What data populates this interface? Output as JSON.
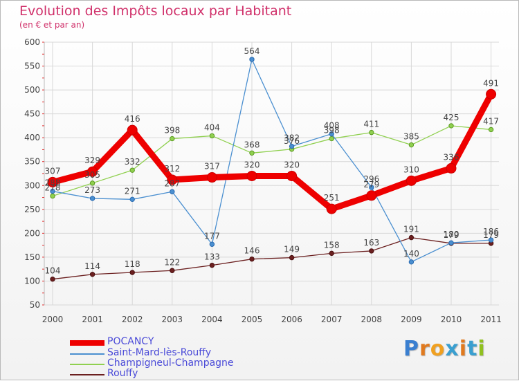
{
  "header": {
    "title": "Evolution des Impôts locaux par Habitant",
    "subtitle": "(en € et par an)"
  },
  "colors": {
    "title": "#d0306a",
    "pocancy": "#ee0000",
    "saint_mard": "#4a8fd0",
    "champigneul": "#90d050",
    "rouffy": "#6b1f1f",
    "grid": "#d8d8d8",
    "legend_text": "#4a4ad8"
  },
  "logo": {
    "text": "Proxiti",
    "letters": [
      "P",
      "r",
      "o",
      "x",
      "i",
      "t",
      "i"
    ],
    "letter_colors": [
      "#3a7fd0",
      "#e07a1f",
      "#f0a020",
      "#3a9fd0",
      "#e07a1f",
      "#3a9fd0",
      "#90c020"
    ]
  },
  "chart_data": {
    "type": "line",
    "title": "Evolution des Impôts locaux par Habitant",
    "subtitle": "(en € et par an)",
    "xlabel": "",
    "ylabel": "",
    "ylim": [
      50,
      600
    ],
    "yticks": [
      50,
      100,
      150,
      200,
      250,
      300,
      350,
      400,
      450,
      500,
      550,
      600
    ],
    "grid": true,
    "legend_position": "bottom-left",
    "categories": [
      "2000",
      "2001",
      "2002",
      "2003",
      "2004",
      "2005",
      "2006",
      "2007",
      "2008",
      "2009",
      "2010",
      "2011"
    ],
    "series": [
      {
        "key": "rouffy",
        "name": "Rouffy",
        "values": [
          104,
          114,
          118,
          122,
          133,
          146,
          149,
          158,
          163,
          191,
          179,
          179
        ],
        "labels": [
          "104",
          "114",
          "118",
          "122",
          "133",
          "146",
          "149",
          "158",
          "163",
          "191",
          "179",
          "179"
        ]
      },
      {
        "key": "champigneul",
        "name": "Champigneul-Champagne",
        "values": [
          278,
          305,
          332,
          398,
          404,
          368,
          376,
          398,
          411,
          385,
          425,
          417
        ],
        "labels": [
          "278",
          "305",
          "332",
          "398",
          "404",
          "368",
          "376",
          "398",
          "411",
          "385",
          "425",
          "417"
        ]
      },
      {
        "key": "saint_mard",
        "name": "Saint-Mard-lès-Rouffy",
        "values": [
          288,
          273,
          271,
          287,
          177,
          564,
          382,
          408,
          296,
          140,
          180,
          186
        ],
        "labels": [
          "288",
          "273",
          "271",
          "287",
          "177",
          "564",
          "382",
          "408",
          "296",
          "140",
          "180",
          "186"
        ]
      },
      {
        "key": "pocancy",
        "name": "POCANCY",
        "values": [
          307,
          329,
          416,
          312,
          317,
          320,
          320,
          251,
          279,
          310,
          336,
          491
        ],
        "labels": [
          "307",
          "329",
          "416",
          "312",
          "317",
          "320",
          "320",
          "251",
          "279",
          "310",
          "336",
          "491"
        ]
      }
    ]
  },
  "legend": {
    "items": [
      {
        "key": "pocancy",
        "label": "POCANCY"
      },
      {
        "key": "saint_mard",
        "label": "Saint-Mard-lès-Rouffy"
      },
      {
        "key": "champigneul",
        "label": "Champigneul-Champagne"
      },
      {
        "key": "rouffy",
        "label": "Rouffy"
      }
    ]
  }
}
